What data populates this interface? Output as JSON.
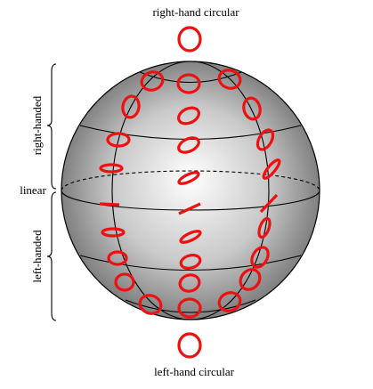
{
  "labels": {
    "top": "right-hand circular",
    "bottom": "left-hand circular",
    "upper_side": "right-handed",
    "lower_side": "left-handed",
    "equator": "linear"
  },
  "colors": {
    "polarization": "#ee1111",
    "sphere_light": "#ffffff",
    "sphere_dark": "#6e6e6e",
    "lines": "#000000"
  }
}
